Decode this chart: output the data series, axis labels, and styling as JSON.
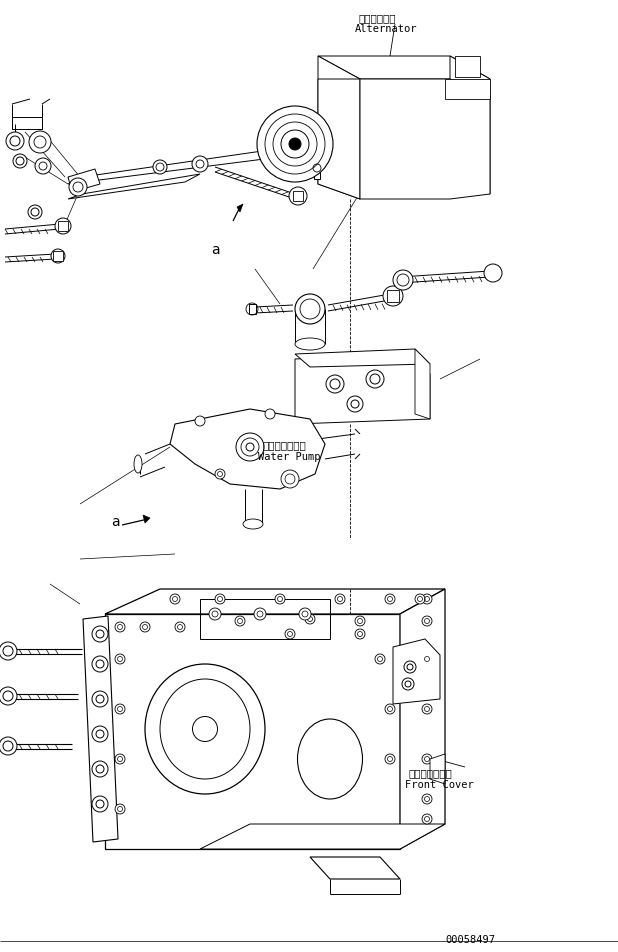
{
  "background_color": "#ffffff",
  "line_color": "#000000",
  "part_number": "00058497",
  "labels": {
    "alternator_jp": "オルタネータ",
    "alternator_en": "Alternator",
    "water_pump_jp": "ウォータポンプ",
    "water_pump_en": "Water Pump",
    "front_cover_jp": "フロントカバー",
    "front_cover_en": "Front Cover"
  },
  "fig_width": 6.18,
  "fig_height": 9.53,
  "dpi": 100
}
